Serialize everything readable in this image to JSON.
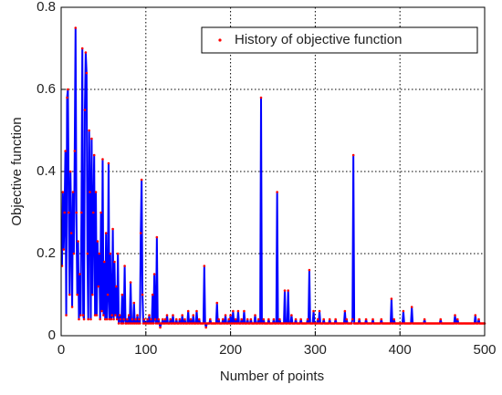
{
  "chart_data": {
    "type": "line",
    "xlabel": "Number of points",
    "ylabel": "Objective function",
    "xlim": [
      0,
      500
    ],
    "ylim": [
      0,
      0.8
    ],
    "xticks": [
      0,
      100,
      200,
      300,
      400,
      500
    ],
    "yticks": [
      0,
      0.2,
      0.4,
      0.6,
      0.8
    ],
    "grid": true,
    "legend": "upper right",
    "x": [
      1,
      2,
      3,
      4,
      5,
      6,
      7,
      8,
      9,
      10,
      11,
      12,
      13,
      14,
      15,
      16,
      17,
      18,
      19,
      20,
      21,
      22,
      23,
      24,
      25,
      26,
      27,
      28,
      29,
      30,
      31,
      32,
      33,
      34,
      35,
      36,
      37,
      38,
      39,
      40,
      41,
      42,
      43,
      44,
      45,
      46,
      47,
      48,
      49,
      50,
      51,
      52,
      53,
      54,
      55,
      56,
      57,
      58,
      59,
      60,
      61,
      62,
      63,
      64,
      65,
      66,
      67,
      68,
      69,
      70,
      71,
      72,
      73,
      74,
      75,
      76,
      77,
      78,
      79,
      80,
      81,
      82,
      83,
      84,
      85,
      86,
      87,
      88,
      89,
      90,
      91,
      92,
      93,
      94,
      95,
      96,
      97,
      98,
      99,
      100,
      101,
      102,
      103,
      104,
      105,
      106,
      107,
      108,
      109,
      110,
      111,
      112,
      113,
      114,
      115,
      116,
      117,
      118,
      119,
      120,
      121,
      122,
      123,
      124,
      125,
      126,
      127,
      128,
      129,
      130,
      131,
      132,
      133,
      134,
      135,
      136,
      137,
      138,
      139,
      140,
      141,
      142,
      143,
      144,
      145,
      146,
      147,
      148,
      149,
      150,
      151,
      152,
      153,
      154,
      155,
      156,
      157,
      158,
      159,
      160,
      161,
      162,
      163,
      164,
      165,
      166,
      167,
      168,
      169,
      170,
      171,
      172,
      173,
      174,
      175,
      176,
      177,
      178,
      179,
      180,
      181,
      182,
      183,
      184,
      185,
      186,
      187,
      188,
      189,
      190,
      191,
      192,
      193,
      194,
      195,
      196,
      197,
      198,
      199,
      200,
      201,
      202,
      203,
      204,
      205,
      206,
      207,
      208,
      209,
      210,
      211,
      212,
      213,
      214,
      215,
      216,
      217,
      218,
      219,
      220,
      221,
      222,
      223,
      224,
      225,
      226,
      227,
      228,
      229,
      230,
      231,
      232,
      233,
      234,
      235,
      236,
      237,
      238,
      239,
      240,
      241,
      242,
      243,
      244,
      245,
      246,
      247,
      248,
      249,
      250,
      251,
      252,
      253,
      254,
      255,
      256,
      257,
      258,
      259,
      260,
      261,
      262,
      263,
      264,
      265,
      266,
      267,
      268,
      269,
      270,
      271,
      272,
      273,
      274,
      275,
      276,
      277,
      278,
      279,
      280,
      281,
      282,
      283,
      284,
      285,
      286,
      287,
      288,
      289,
      290,
      291,
      292,
      293,
      294,
      295,
      296,
      297,
      298,
      299,
      300,
      301,
      302,
      303,
      304,
      305,
      306,
      307,
      308,
      309,
      310,
      311,
      312,
      313,
      314,
      315,
      316,
      317,
      318,
      319,
      320,
      321,
      322,
      323,
      324,
      325,
      326,
      327,
      328,
      329,
      330,
      331,
      332,
      333,
      334,
      335,
      336,
      337,
      338,
      339,
      340,
      341,
      342,
      343,
      344,
      345,
      346,
      347,
      348,
      349,
      350,
      351,
      352,
      353,
      354,
      355,
      356,
      357,
      358,
      359,
      360,
      361,
      362,
      363,
      364,
      365,
      366,
      367,
      368,
      369,
      370,
      371,
      372,
      373,
      374,
      375,
      376,
      377,
      378,
      379,
      380,
      381,
      382,
      383,
      384,
      385,
      386,
      387,
      388,
      389,
      390,
      391,
      392,
      393,
      394,
      395,
      396,
      397,
      398,
      399,
      400,
      401,
      402,
      403,
      404,
      405,
      406,
      407,
      408,
      409,
      410,
      411,
      412,
      413,
      414,
      415,
      416,
      417,
      418,
      419,
      420,
      421,
      422,
      423,
      424,
      425,
      426,
      427,
      428,
      429,
      430,
      431,
      432,
      433,
      434,
      435,
      436,
      437,
      438,
      439,
      440,
      441,
      442,
      443,
      444,
      445,
      446,
      447,
      448,
      449,
      450,
      451,
      452,
      453,
      454,
      455,
      456,
      457,
      458,
      459,
      460,
      461,
      462,
      463,
      464,
      465,
      466,
      467,
      468,
      469,
      470,
      471,
      472,
      473,
      474,
      475,
      476,
      477,
      478,
      479,
      480,
      481,
      482,
      483,
      484,
      485,
      486,
      487,
      488,
      489,
      490,
      491,
      492,
      493,
      494,
      495,
      496,
      497,
      498,
      499,
      500
    ],
    "series": [
      {
        "name": "History of objective function",
        "color": "#0000ff",
        "marker_color": "#ff0000",
        "values": [
          0.17,
          0.35,
          0.21,
          0.3,
          0.45,
          0.05,
          0.58,
          0.6,
          0.3,
          0.1,
          0.4,
          0.25,
          0.07,
          0.35,
          0.2,
          0.45,
          0.75,
          0.3,
          0.1,
          0.23,
          0.04,
          0.15,
          0.05,
          0.3,
          0.7,
          0.05,
          0.04,
          0.55,
          0.69,
          0.64,
          0.2,
          0.04,
          0.5,
          0.35,
          0.04,
          0.48,
          0.1,
          0.3,
          0.44,
          0.05,
          0.35,
          0.05,
          0.23,
          0.12,
          0.2,
          0.04,
          0.3,
          0.06,
          0.43,
          0.05,
          0.18,
          0.04,
          0.25,
          0.04,
          0.1,
          0.42,
          0.04,
          0.2,
          0.04,
          0.05,
          0.26,
          0.04,
          0.18,
          0.05,
          0.12,
          0.04,
          0.2,
          0.03,
          0.05,
          0.04,
          0.03,
          0.1,
          0.03,
          0.04,
          0.17,
          0.03,
          0.03,
          0.04,
          0.03,
          0.05,
          0.03,
          0.13,
          0.03,
          0.04,
          0.03,
          0.08,
          0.03,
          0.04,
          0.03,
          0.05,
          0.03,
          0.04,
          0.03,
          0.25,
          0.38,
          0.1,
          0.03,
          0.04,
          0.03,
          0.03,
          0.03,
          0.04,
          0.03,
          0.05,
          0.03,
          0.04,
          0.03,
          0.1,
          0.03,
          0.15,
          0.04,
          0.03,
          0.24,
          0.03,
          0.04,
          0.03,
          0.02,
          0.03,
          0.03,
          0.04,
          0.03,
          0.03,
          0.04,
          0.03,
          0.05,
          0.03,
          0.03,
          0.03,
          0.04,
          0.03,
          0.03,
          0.05,
          0.03,
          0.03,
          0.03,
          0.04,
          0.03,
          0.03,
          0.03,
          0.04,
          0.03,
          0.03,
          0.05,
          0.03,
          0.03,
          0.04,
          0.03,
          0.03,
          0.03,
          0.06,
          0.03,
          0.03,
          0.04,
          0.03,
          0.03,
          0.05,
          0.03,
          0.03,
          0.03,
          0.06,
          0.03,
          0.03,
          0.04,
          0.03,
          0.03,
          0.03,
          0.03,
          0.03,
          0.17,
          0.03,
          0.02,
          0.03,
          0.03,
          0.03,
          0.03,
          0.04,
          0.03,
          0.03,
          0.03,
          0.03,
          0.03,
          0.03,
          0.03,
          0.08,
          0.03,
          0.04,
          0.03,
          0.03,
          0.03,
          0.03,
          0.04,
          0.03,
          0.03,
          0.05,
          0.03,
          0.03,
          0.03,
          0.04,
          0.03,
          0.05,
          0.03,
          0.03,
          0.06,
          0.03,
          0.03,
          0.04,
          0.03,
          0.03,
          0.06,
          0.03,
          0.03,
          0.03,
          0.04,
          0.03,
          0.03,
          0.06,
          0.03,
          0.03,
          0.03,
          0.04,
          0.03,
          0.03,
          0.03,
          0.04,
          0.03,
          0.03,
          0.03,
          0.03,
          0.05,
          0.03,
          0.03,
          0.03,
          0.04,
          0.03,
          0.03,
          0.58,
          0.03,
          0.03,
          0.04,
          0.03,
          0.03,
          0.03,
          0.03,
          0.03,
          0.04,
          0.03,
          0.03,
          0.03,
          0.03,
          0.03,
          0.04,
          0.03,
          0.03,
          0.03,
          0.35,
          0.03,
          0.03,
          0.04,
          0.03,
          0.03,
          0.03,
          0.03,
          0.03,
          0.11,
          0.03,
          0.03,
          0.03,
          0.11,
          0.03,
          0.03,
          0.03,
          0.05,
          0.03,
          0.03,
          0.03,
          0.03,
          0.04,
          0.03,
          0.03,
          0.03,
          0.03,
          0.03,
          0.04,
          0.03,
          0.03,
          0.03,
          0.03,
          0.03,
          0.03,
          0.03,
          0.04,
          0.03,
          0.16,
          0.03,
          0.03,
          0.03,
          0.03,
          0.06,
          0.03,
          0.03,
          0.03,
          0.03,
          0.04,
          0.03,
          0.06,
          0.03,
          0.03,
          0.03,
          0.03,
          0.04,
          0.03,
          0.03,
          0.03,
          0.03,
          0.03,
          0.03,
          0.04,
          0.03,
          0.03,
          0.03,
          0.03,
          0.03,
          0.03,
          0.04,
          0.03,
          0.03,
          0.03,
          0.03,
          0.03,
          0.03,
          0.03,
          0.03,
          0.03,
          0.03,
          0.06,
          0.03,
          0.04,
          0.03,
          0.03,
          0.03,
          0.03,
          0.03,
          0.03,
          0.04,
          0.44,
          0.03,
          0.03,
          0.03,
          0.03,
          0.03,
          0.03,
          0.04,
          0.03,
          0.03,
          0.03,
          0.03,
          0.03,
          0.03,
          0.03,
          0.04,
          0.03,
          0.03,
          0.03,
          0.03,
          0.03,
          0.03,
          0.03,
          0.04,
          0.03,
          0.03,
          0.03,
          0.03,
          0.03,
          0.03,
          0.03,
          0.03,
          0.03,
          0.04,
          0.03,
          0.03,
          0.03,
          0.03,
          0.03,
          0.03,
          0.03,
          0.03,
          0.03,
          0.03,
          0.03,
          0.09,
          0.03,
          0.03,
          0.04,
          0.03,
          0.03,
          0.03,
          0.03,
          0.03,
          0.03,
          0.03,
          0.03,
          0.03,
          0.03,
          0.06,
          0.03,
          0.03,
          0.03,
          0.03,
          0.03,
          0.03,
          0.03,
          0.03,
          0.03,
          0.07,
          0.03,
          0.03,
          0.03,
          0.03,
          0.03,
          0.03,
          0.03,
          0.03,
          0.03,
          0.03,
          0.03,
          0.03,
          0.03,
          0.03,
          0.04,
          0.03,
          0.03,
          0.03,
          0.03,
          0.03,
          0.03,
          0.03,
          0.03,
          0.03,
          0.03,
          0.03,
          0.03,
          0.03,
          0.03,
          0.03,
          0.03,
          0.03,
          0.03,
          0.04,
          0.03,
          0.03,
          0.03,
          0.03,
          0.03,
          0.03,
          0.03,
          0.03,
          0.03,
          0.03,
          0.03,
          0.03,
          0.03,
          0.03,
          0.03,
          0.03,
          0.05,
          0.03,
          0.03,
          0.04,
          0.03,
          0.03,
          0.03,
          0.03,
          0.03,
          0.03,
          0.03,
          0.03,
          0.03,
          0.03,
          0.03,
          0.03,
          0.03,
          0.03,
          0.03,
          0.03,
          0.03,
          0.03,
          0.03,
          0.03,
          0.05,
          0.03,
          0.03,
          0.03,
          0.04,
          0.03,
          0.03,
          0.03,
          0.03,
          0.03,
          0.03,
          0.03
        ]
      }
    ]
  }
}
